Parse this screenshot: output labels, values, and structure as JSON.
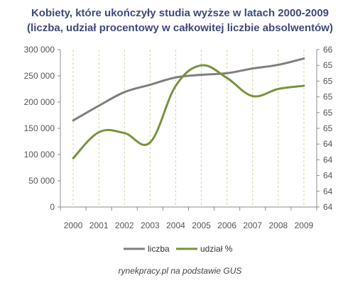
{
  "chart_data": {
    "type": "line",
    "title": "Kobiety, które ukończyły studia wyższe w latach 2000-2009",
    "subtitle": "(liczba, udział procentowy w całkowitej liczbie absolwentów)",
    "categories": [
      "2000",
      "2001",
      "2002",
      "2003",
      "2004",
      "2005",
      "2006",
      "2007",
      "2008",
      "2009"
    ],
    "y_left": {
      "min": 0,
      "max": 300000,
      "ticks": [
        "0",
        "50 000",
        "100 000",
        "150 000",
        "200 000",
        "250 000",
        "300 000"
      ]
    },
    "y_right": {
      "min": 64,
      "max": 66,
      "ticks": [
        "64",
        "64",
        "64",
        "64",
        "64",
        "65",
        "65",
        "65",
        "65",
        "65",
        "66"
      ]
    },
    "series": [
      {
        "name": "liczba",
        "axis": "left",
        "color": "#7f7f7f",
        "values": [
          165000,
          193000,
          219000,
          233000,
          247000,
          252000,
          255000,
          264000,
          271000,
          283000
        ]
      },
      {
        "name": "udział %",
        "axis": "right",
        "color": "#77933c",
        "values": [
          64.62,
          64.95,
          64.94,
          64.82,
          65.54,
          65.8,
          65.64,
          65.41,
          65.5,
          65.54
        ]
      }
    ],
    "grid": "vertical-dashed",
    "legend": "bottom"
  },
  "source": "rynekpracy.pl na podstawie  GUS"
}
